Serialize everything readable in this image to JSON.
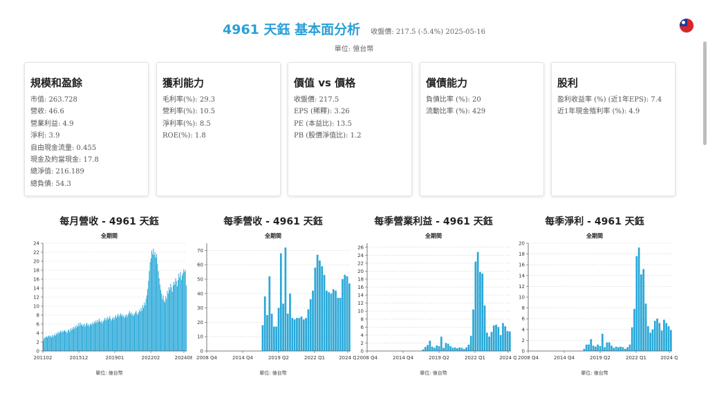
{
  "header": {
    "title": "4961 天鈺 基本面分析",
    "price_info": "收盤價: 217.5 (-5.4%) 2025-05-16",
    "unit": "單位: 億台幣"
  },
  "cards": [
    {
      "title": "規模和盈餘",
      "rows": [
        "市值: 263.728",
        "營收: 46.6",
        "營業利益: 4.9",
        "淨利: 3.9",
        "自由現金流量: 0.455",
        "現金及約當現金: 17.8",
        "總淨值: 216.189",
        "總負債: 54.3"
      ]
    },
    {
      "title": "獲利能力",
      "rows": [
        "毛利率(%): 29.3",
        "營利率(%): 10.5",
        "淨利率(%): 8.5",
        "ROE(%): 1.8"
      ]
    },
    {
      "title": "價值 vs 價格",
      "rows": [
        "收盤價: 217.5",
        "EPS (稀釋): 3.26",
        "PE (本益比): 13.5",
        "PB (股價淨值比): 1.2"
      ]
    },
    {
      "title": "償債能力",
      "rows": [
        "負債比率 (%): 20",
        "流動比率 (%): 429"
      ]
    },
    {
      "title": "股利",
      "rows": [
        "盈利收益率 (%) (近1年EPS): 7.4",
        "近1年現金殖利率 (%): 4.9"
      ]
    }
  ],
  "colors": {
    "bar": "#29a8d8",
    "title": "#2a9fd6"
  },
  "chart_data": [
    {
      "type": "bar",
      "title": "每月營收 - 4961 天鈺",
      "subtitle": "全期間",
      "unit": "單位: 億台幣",
      "xticks": [
        "201102",
        "201512",
        "201901",
        "202202",
        "202408"
      ],
      "ylim": [
        0,
        24
      ],
      "yticks": [
        0,
        2,
        4,
        6,
        8,
        10,
        12,
        14,
        16,
        18,
        20,
        22,
        24
      ],
      "values": [
        2.2,
        2.8,
        3.0,
        3.1,
        3.3,
        3.0,
        3.3,
        3.5,
        3.2,
        3.4,
        3.0,
        3.6,
        3.2,
        3.5,
        3.8,
        3.4,
        4.0,
        3.7,
        4.3,
        3.9,
        4.2,
        4.5,
        4.1,
        4.6,
        4.2,
        4.5,
        4.7,
        4.3,
        4.4,
        4.0,
        4.6,
        4.8,
        4.2,
        5.0,
        4.6,
        5.2,
        4.8,
        5.4,
        5.0,
        5.6,
        5.2,
        5.8,
        5.4,
        6.2,
        5.6,
        6.4,
        5.8,
        6.0,
        5.5,
        5.8,
        6.1,
        5.4,
        5.9,
        6.3,
        5.7,
        6.0,
        5.5,
        5.9,
        6.2,
        5.8,
        6.4,
        6.0,
        6.6,
        6.2,
        6.8,
        6.3,
        6.9,
        6.5,
        7.2,
        6.6,
        6.4,
        6.8,
        6.2,
        6.6,
        7.0,
        7.4,
        6.8,
        7.2,
        7.6,
        7.0,
        7.4,
        7.8,
        7.2,
        6.8,
        7.2,
        7.6,
        7.0,
        7.5,
        8.0,
        7.4,
        7.8,
        8.3,
        7.6,
        8.0,
        8.4,
        7.8,
        8.2,
        7.6,
        8.0,
        7.4,
        7.8,
        8.2,
        7.6,
        8.0,
        8.5,
        8.9,
        8.2,
        8.6,
        8.0,
        8.4,
        7.8,
        8.2,
        8.6,
        9.0,
        8.4,
        8.0,
        8.6,
        9.2,
        8.8,
        9.6,
        9.0,
        10.2,
        9.6,
        10.8,
        10.2,
        11.6,
        12.4,
        13.8,
        15.6,
        17.8,
        19.8,
        20.6,
        22.4,
        21.6,
        22.8,
        21.4,
        22.0,
        20.8,
        21.6,
        19.4,
        17.8,
        16.2,
        14.8,
        13.6,
        12.8,
        11.6,
        12.4,
        11.2,
        10.8,
        12.2,
        11.6,
        13.4,
        12.8,
        14.2,
        13.6,
        15.0,
        14.2,
        13.2,
        14.6,
        15.4,
        14.8,
        16.2,
        15.6,
        14.4,
        15.8,
        17.2,
        16.4,
        17.6,
        15.8,
        16.8,
        17.4,
        18.2,
        17.6,
        18.0,
        14.6
      ]
    },
    {
      "type": "bar",
      "title": "每季營收 - 4961 天鈺",
      "subtitle": "全期間",
      "unit": "單位: 億台幣",
      "xticks": [
        "2008 Q4",
        "2014 Q4",
        "2019 Q2",
        "2022 Q1",
        "2024 Q"
      ],
      "ylim": [
        0,
        75
      ],
      "yticks": [
        0,
        10,
        20,
        30,
        40,
        50,
        60,
        70
      ],
      "values": [
        0,
        0,
        0,
        0,
        0,
        0,
        0,
        0,
        0,
        0,
        0,
        0,
        0,
        0,
        0,
        0,
        0,
        0,
        0,
        0,
        0,
        0,
        0,
        0,
        18,
        38,
        25,
        52,
        26,
        17,
        17,
        30,
        68,
        33,
        72,
        26,
        40,
        23,
        22,
        23,
        23,
        24,
        22,
        23,
        29,
        36,
        42,
        58,
        67,
        63,
        59,
        53,
        42,
        41,
        40,
        43,
        42,
        37,
        37,
        50,
        53,
        52,
        47
      ]
    },
    {
      "type": "bar",
      "title": "每季營業利益 - 4961 天鈺",
      "subtitle": "全期間",
      "unit": "單位: 億台幣",
      "xticks": [
        "2008 Q4",
        "2014 Q4",
        "2019 Q2",
        "2022 Q1",
        "2024 Q"
      ],
      "ylim": [
        0,
        27
      ],
      "yticks": [
        0,
        2,
        4,
        6,
        8,
        10,
        12,
        14,
        16,
        18,
        20,
        22,
        24,
        26
      ],
      "values": [
        0,
        0,
        0,
        0,
        0,
        0,
        0,
        0,
        0,
        0,
        0,
        0,
        0,
        0,
        0,
        0,
        0,
        0,
        0,
        0,
        0,
        0,
        0,
        0,
        0.4,
        1.0,
        1.5,
        2.6,
        1.1,
        0.8,
        1.4,
        1.2,
        3.6,
        0.8,
        2.0,
        1.8,
        1.2,
        0.8,
        0.9,
        0.7,
        0.9,
        0.8,
        0.5,
        0.9,
        1.6,
        3.8,
        10.4,
        22.4,
        24.8,
        19.8,
        19.4,
        11.4,
        4.6,
        3.6,
        4.8,
        6.4,
        6.6,
        6.0,
        4.0,
        7.0,
        6.2,
        5.0,
        4.9
      ]
    },
    {
      "type": "bar",
      "title": "每季淨利 - 4961 天鈺",
      "subtitle": "全期間",
      "unit": "單位: 億台幣",
      "xticks": [
        "2008 Q4",
        "2014 Q4",
        "2019 Q2",
        "2022 Q1",
        "2024 Q"
      ],
      "ylim": [
        0,
        20
      ],
      "yticks": [
        0,
        2,
        4,
        6,
        8,
        10,
        12,
        14,
        16,
        18,
        20
      ],
      "values": [
        0,
        0,
        0,
        0,
        0,
        0,
        0,
        0,
        0,
        0,
        0,
        0,
        0,
        0,
        0,
        0,
        0,
        0,
        0,
        0,
        0,
        0,
        0,
        0,
        0.4,
        1.2,
        1.2,
        2.2,
        1.0,
        0.8,
        1.2,
        0.9,
        3.2,
        0.7,
        1.6,
        1.6,
        1.0,
        0.6,
        0.8,
        0.7,
        0.8,
        0.7,
        0.4,
        0.7,
        1.2,
        4.4,
        7.8,
        17.6,
        19.2,
        14.2,
        15.2,
        8.8,
        4.6,
        3.4,
        4.0,
        5.6,
        6.0,
        5.2,
        3.8,
        5.8,
        5.2,
        4.6,
        3.9
      ]
    }
  ]
}
